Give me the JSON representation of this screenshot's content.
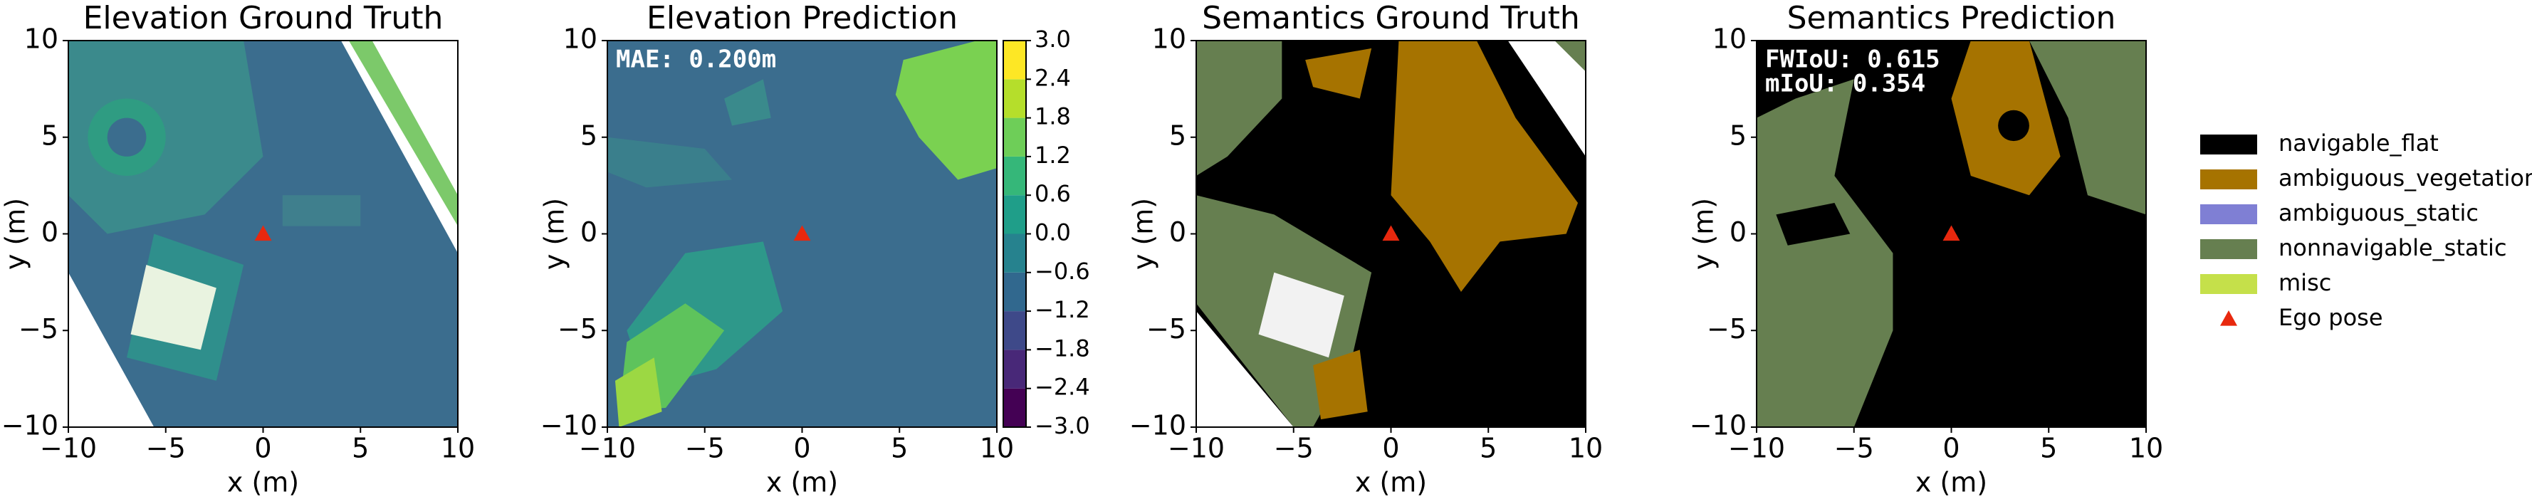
{
  "chart_data": [
    {
      "type": "image",
      "title": "Elevation Ground Truth",
      "xlabel": "x (m)",
      "ylabel": "y (m)",
      "xlim": [
        -10,
        10
      ],
      "ylim": [
        -10,
        10
      ],
      "xticks": [
        {
          "value": -10,
          "label": "−10"
        },
        {
          "value": -5,
          "label": "−5"
        },
        0,
        5,
        10
      ],
      "yticks": [
        {
          "value": -10,
          "label": "−10"
        },
        {
          "value": -5,
          "label": "−5"
        },
        0,
        5,
        10
      ]
    },
    {
      "type": "image",
      "title": "Elevation Prediction",
      "xlabel": "x (m)",
      "ylabel": "y (m)",
      "xlim": [
        -10,
        10
      ],
      "ylim": [
        -10,
        10
      ],
      "xticks": [
        {
          "value": -10,
          "label": "−10"
        },
        {
          "value": -5,
          "label": "−5"
        },
        0,
        5,
        10
      ],
      "yticks": [
        {
          "value": -10,
          "label": "−10"
        },
        {
          "value": -5,
          "label": "−5"
        },
        0,
        5,
        10
      ],
      "annotations": [
        "MAE: 0.200m"
      ],
      "colorbar": {
        "lim": [
          -3,
          3
        ],
        "ticks": [
          {
            "value": 3,
            "label": "3.0"
          },
          2.4,
          1.8,
          1.2,
          0.6,
          {
            "value": 0,
            "label": "0.0"
          },
          {
            "value": -0.6,
            "label": "−0.6"
          },
          {
            "value": -1.2,
            "label": "−1.2"
          },
          {
            "value": -1.8,
            "label": "−1.8"
          },
          {
            "value": -2.4,
            "label": "−2.4"
          },
          {
            "value": -3,
            "label": "−3.0"
          }
        ],
        "colors": [
          "#440154",
          "#482878",
          "#3e4989",
          "#31688e",
          "#26828e",
          "#1f9e89",
          "#35b779",
          "#6ece58",
          "#b5de2b",
          "#fde725"
        ]
      }
    },
    {
      "type": "image",
      "title": "Semantics Ground Truth",
      "xlabel": "x (m)",
      "ylabel": "y (m)",
      "xlim": [
        -10,
        10
      ],
      "ylim": [
        -10,
        10
      ],
      "xticks": [
        {
          "value": -10,
          "label": "−10"
        },
        {
          "value": -5,
          "label": "−5"
        },
        0,
        5,
        10
      ],
      "yticks": [
        {
          "value": -10,
          "label": "−10"
        },
        {
          "value": -5,
          "label": "−5"
        },
        0,
        5,
        10
      ]
    },
    {
      "type": "image",
      "title": "Semantics Prediction",
      "xlabel": "x (m)",
      "ylabel": "y (m)",
      "xlim": [
        -10,
        10
      ],
      "ylim": [
        -10,
        10
      ],
      "xticks": [
        {
          "value": -10,
          "label": "−10"
        },
        {
          "value": -5,
          "label": "−5"
        },
        0,
        5,
        10
      ],
      "yticks": [
        {
          "value": -10,
          "label": "−10"
        },
        {
          "value": -5,
          "label": "−5"
        },
        0,
        5,
        10
      ],
      "annotations": [
        "FWIoU: 0.615",
        "mIoU: 0.354"
      ]
    }
  ],
  "legend": {
    "items": [
      {
        "name": "navigable_flat",
        "color": "#000000"
      },
      {
        "name": "ambiguous_vegetation",
        "color": "#a67300"
      },
      {
        "name": "ambiguous_static",
        "color": "#7f7fd4"
      },
      {
        "name": "nonnavigable_static",
        "color": "#667f50"
      },
      {
        "name": "misc",
        "color": "#c5e04a"
      }
    ],
    "ego_pose": {
      "name": "Ego pose",
      "color": "#e8280e",
      "x": 0,
      "y": 0
    }
  }
}
